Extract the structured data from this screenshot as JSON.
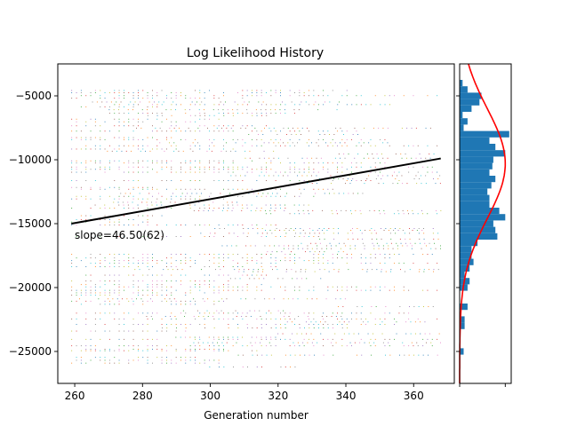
{
  "chart_data": {
    "type": "scatter",
    "title": "Log Likelihood History",
    "xlabel": "Generation number",
    "ylabel": "",
    "xlim": [
      255,
      372
    ],
    "ylim": [
      -27500,
      -2500
    ],
    "xticks": [
      260,
      280,
      300,
      320,
      340,
      360
    ],
    "yticks": [
      -5000,
      -10000,
      -15000,
      -20000,
      -25000
    ],
    "xtick_labels": [
      "260",
      "280",
      "300",
      "320",
      "340",
      "360"
    ],
    "ytick_labels": [
      "−5000",
      "−10000",
      "−15000",
      "−20000",
      "−25000"
    ],
    "grid": false,
    "series_colors": [
      "#1f77b4",
      "#ff7f0e",
      "#2ca02c",
      "#d62728",
      "#9467bd",
      "#8c564b",
      "#e377c2",
      "#7f7f7f",
      "#bcbd22",
      "#17becf"
    ],
    "trend_line": {
      "x": [
        259,
        368
      ],
      "y": [
        -15000,
        -9900
      ],
      "color": "#000000"
    },
    "annotation": "slope=46.50(62)",
    "histogram": {
      "orientation": "horizontal",
      "color": "#1f77b4",
      "bins": [
        {
          "y": -4000,
          "count": 3
        },
        {
          "y": -4500,
          "count": 8
        },
        {
          "y": -5000,
          "count": 22
        },
        {
          "y": -5500,
          "count": 20
        },
        {
          "y": -6000,
          "count": 12
        },
        {
          "y": -6500,
          "count": 3
        },
        {
          "y": -7000,
          "count": 8
        },
        {
          "y": -7500,
          "count": 4
        },
        {
          "y": -8000,
          "count": 50
        },
        {
          "y": -8500,
          "count": 30
        },
        {
          "y": -9000,
          "count": 36
        },
        {
          "y": -9500,
          "count": 46
        },
        {
          "y": -10000,
          "count": 34
        },
        {
          "y": -10500,
          "count": 33
        },
        {
          "y": -11000,
          "count": 30
        },
        {
          "y": -11500,
          "count": 36
        },
        {
          "y": -12000,
          "count": 32
        },
        {
          "y": -12500,
          "count": 28
        },
        {
          "y": -13000,
          "count": 30
        },
        {
          "y": -13500,
          "count": 30
        },
        {
          "y": -14000,
          "count": 40
        },
        {
          "y": -14500,
          "count": 46
        },
        {
          "y": -15000,
          "count": 34
        },
        {
          "y": -15500,
          "count": 36
        },
        {
          "y": -16000,
          "count": 38
        },
        {
          "y": -16500,
          "count": 18
        },
        {
          "y": -17000,
          "count": 12
        },
        {
          "y": -17500,
          "count": 12
        },
        {
          "y": -18000,
          "count": 14
        },
        {
          "y": -18500,
          "count": 10
        },
        {
          "y": -19000,
          "count": 5
        },
        {
          "y": -19500,
          "count": 10
        },
        {
          "y": -20000,
          "count": 8
        },
        {
          "y": -21500,
          "count": 8
        },
        {
          "y": -22500,
          "count": 5
        },
        {
          "y": -23000,
          "count": 5
        },
        {
          "y": -25000,
          "count": 4
        }
      ],
      "fit_curve_color": "#ff0000",
      "fit_mean": -10300,
      "fit_sd": 4300,
      "fit_peak_count": 46
    }
  }
}
